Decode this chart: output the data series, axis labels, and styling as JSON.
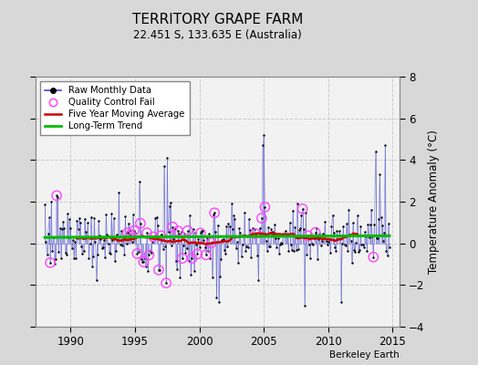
{
  "title": "TERRITORY GRAPE FARM",
  "subtitle": "22.451 S, 133.635 E (Australia)",
  "ylabel": "Temperature Anomaly (°C)",
  "credit": "Berkeley Earth",
  "ylim": [
    -4,
    8
  ],
  "yticks": [
    -4,
    -2,
    0,
    2,
    4,
    6,
    8
  ],
  "xlim": [
    1987.3,
    2015.5
  ],
  "xticks": [
    1990,
    1995,
    2000,
    2005,
    2010,
    2015
  ],
  "bg_color": "#d8d8d8",
  "plot_bg_color": "#f2f2f2",
  "raw_line_color": "#4444cc",
  "raw_dot_color": "#000000",
  "qc_fail_color": "#ff44ff",
  "moving_avg_color": "#cc0000",
  "trend_color": "#00bb00",
  "trend_intercept": 0.32,
  "trend_slope": 0.003,
  "seed": 12345
}
